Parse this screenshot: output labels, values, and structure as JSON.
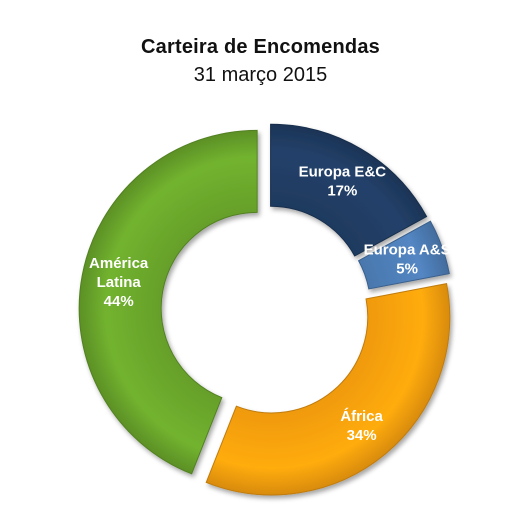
{
  "chart_data": {
    "type": "pie",
    "title": "Carteira de Encomendas",
    "subtitle": "31 março 2015",
    "donut": true,
    "exploded": true,
    "slices": [
      {
        "label_lines": [
          "Europa E&C"
        ],
        "value": 17,
        "value_label": "17%",
        "color": "#1f3a5f"
      },
      {
        "label_lines": [
          "Europa A&S"
        ],
        "value": 5,
        "value_label": "5%",
        "color": "#4a78ae"
      },
      {
        "label_lines": [
          "África"
        ],
        "value": 34,
        "value_label": "34%",
        "color": "#f09a0c"
      },
      {
        "label_lines": [
          "América",
          "Latina"
        ],
        "value": 44,
        "value_label": "44%",
        "color": "#66a02a"
      }
    ]
  }
}
